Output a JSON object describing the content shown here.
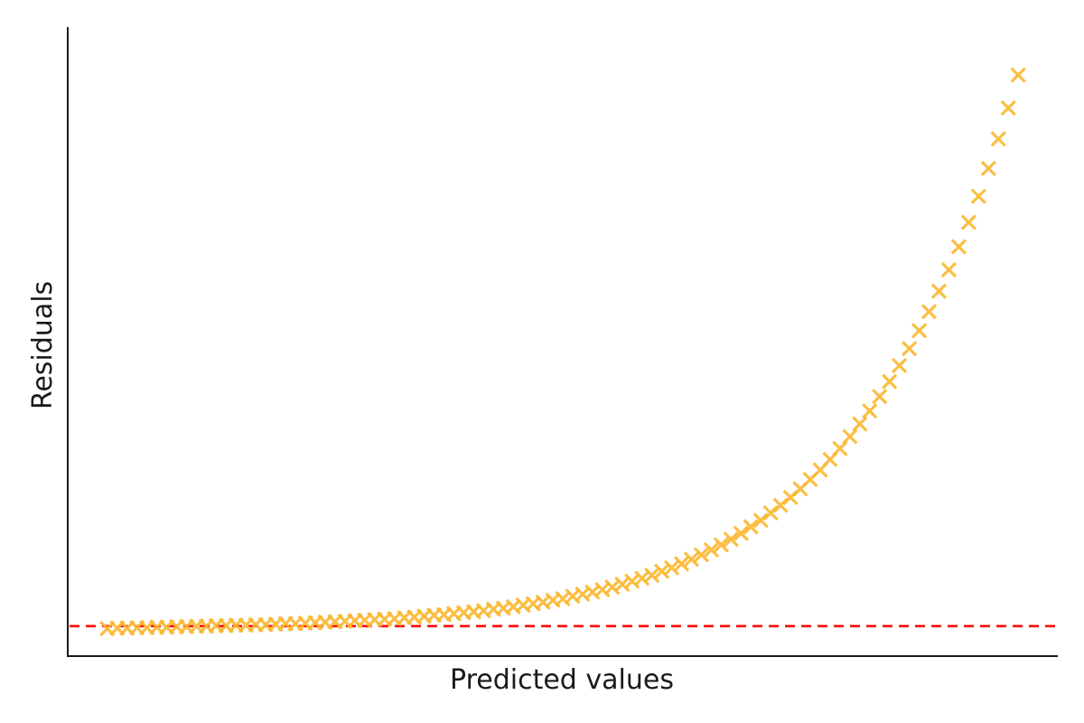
{
  "chart_data": {
    "type": "scatter",
    "xlabel": "Predicted values",
    "ylabel": "Residuals",
    "xlim": [
      0,
      100
    ],
    "ylim": [
      -0.6,
      12
    ],
    "grid": false,
    "ticks": "none",
    "reference_line": {
      "y": 0,
      "style": "dashed",
      "color": "#ff0000"
    },
    "marker": {
      "shape": "x",
      "color": "#fbb72f"
    },
    "series": [
      {
        "x": [
          4,
          5,
          6,
          7,
          8,
          9,
          10,
          11,
          12,
          13,
          14,
          15,
          16,
          17,
          18,
          19,
          20,
          21,
          22,
          23,
          24,
          25,
          26,
          27,
          28,
          29,
          30,
          31,
          32,
          33,
          34,
          35,
          36,
          37,
          38,
          39,
          40,
          41,
          42,
          43,
          44,
          45,
          46,
          47,
          48,
          49,
          50,
          51,
          52,
          53,
          54,
          55,
          56,
          57,
          58,
          59,
          60,
          61,
          62,
          63,
          64,
          65,
          66,
          67,
          68,
          69,
          70,
          71,
          72,
          73,
          74,
          75,
          76,
          77,
          78,
          79,
          80,
          81,
          82,
          83,
          84,
          85,
          86,
          87,
          88,
          89,
          90,
          91,
          92,
          93,
          94,
          95,
          96
        ],
        "y": [
          -0.05,
          -0.04,
          -0.04,
          -0.03,
          -0.03,
          -0.02,
          -0.02,
          -0.01,
          -0.01,
          0.0,
          0.0,
          0.01,
          0.01,
          0.02,
          0.02,
          0.03,
          0.03,
          0.04,
          0.05,
          0.05,
          0.06,
          0.07,
          0.08,
          0.09,
          0.1,
          0.11,
          0.12,
          0.13,
          0.14,
          0.15,
          0.17,
          0.18,
          0.2,
          0.22,
          0.23,
          0.25,
          0.27,
          0.29,
          0.31,
          0.34,
          0.36,
          0.39,
          0.42,
          0.45,
          0.48,
          0.52,
          0.55,
          0.6,
          0.64,
          0.68,
          0.73,
          0.78,
          0.84,
          0.9,
          0.96,
          1.02,
          1.1,
          1.17,
          1.25,
          1.34,
          1.43,
          1.53,
          1.63,
          1.74,
          1.86,
          1.99,
          2.12,
          2.27,
          2.42,
          2.58,
          2.75,
          2.94,
          3.13,
          3.34,
          3.56,
          3.8,
          4.05,
          4.31,
          4.6,
          4.9,
          5.22,
          5.56,
          5.92,
          6.3,
          6.71,
          7.14,
          7.6,
          8.09,
          8.61,
          9.17,
          9.76,
          10.38,
          11.04
        ]
      }
    ]
  }
}
